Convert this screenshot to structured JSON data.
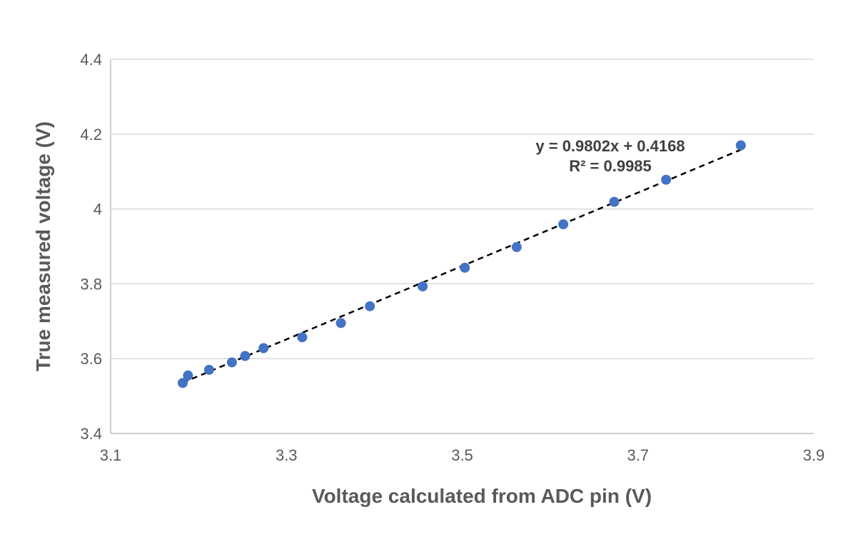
{
  "chart_data": {
    "type": "scatter",
    "title": "",
    "xlabel": "Voltage calculated from ADC pin (V)",
    "ylabel": "True measured voltage (V)",
    "xlim": [
      3.1,
      3.9
    ],
    "ylim": [
      3.4,
      4.4
    ],
    "xticks": [
      "3.1",
      "3.3",
      "3.5",
      "3.7",
      "3.9"
    ],
    "yticks": [
      "3.4",
      "3.6",
      "3.8",
      "4",
      "4.2",
      "4.4"
    ],
    "grid": "horizontal",
    "legend": "none",
    "marker_color": "#4472c4",
    "series": [
      {
        "x": [
          3.182,
          3.188,
          3.212,
          3.238,
          3.253,
          3.274,
          3.318,
          3.362,
          3.395,
          3.455,
          3.503,
          3.562,
          3.615,
          3.673,
          3.732,
          3.817
        ],
        "y": [
          3.535,
          3.555,
          3.57,
          3.59,
          3.607,
          3.628,
          3.657,
          3.695,
          3.74,
          3.793,
          3.843,
          3.898,
          3.959,
          4.019,
          4.078,
          4.17
        ]
      }
    ],
    "trendline": {
      "type": "linear",
      "slope": 0.9802,
      "intercept": 0.4168,
      "x_range": [
        3.182,
        3.817
      ],
      "style": "dashed",
      "color": "#000000",
      "equation_label": "y = 0.9802x + 0.4168",
      "r2_label": "R² = 0.9985"
    }
  }
}
